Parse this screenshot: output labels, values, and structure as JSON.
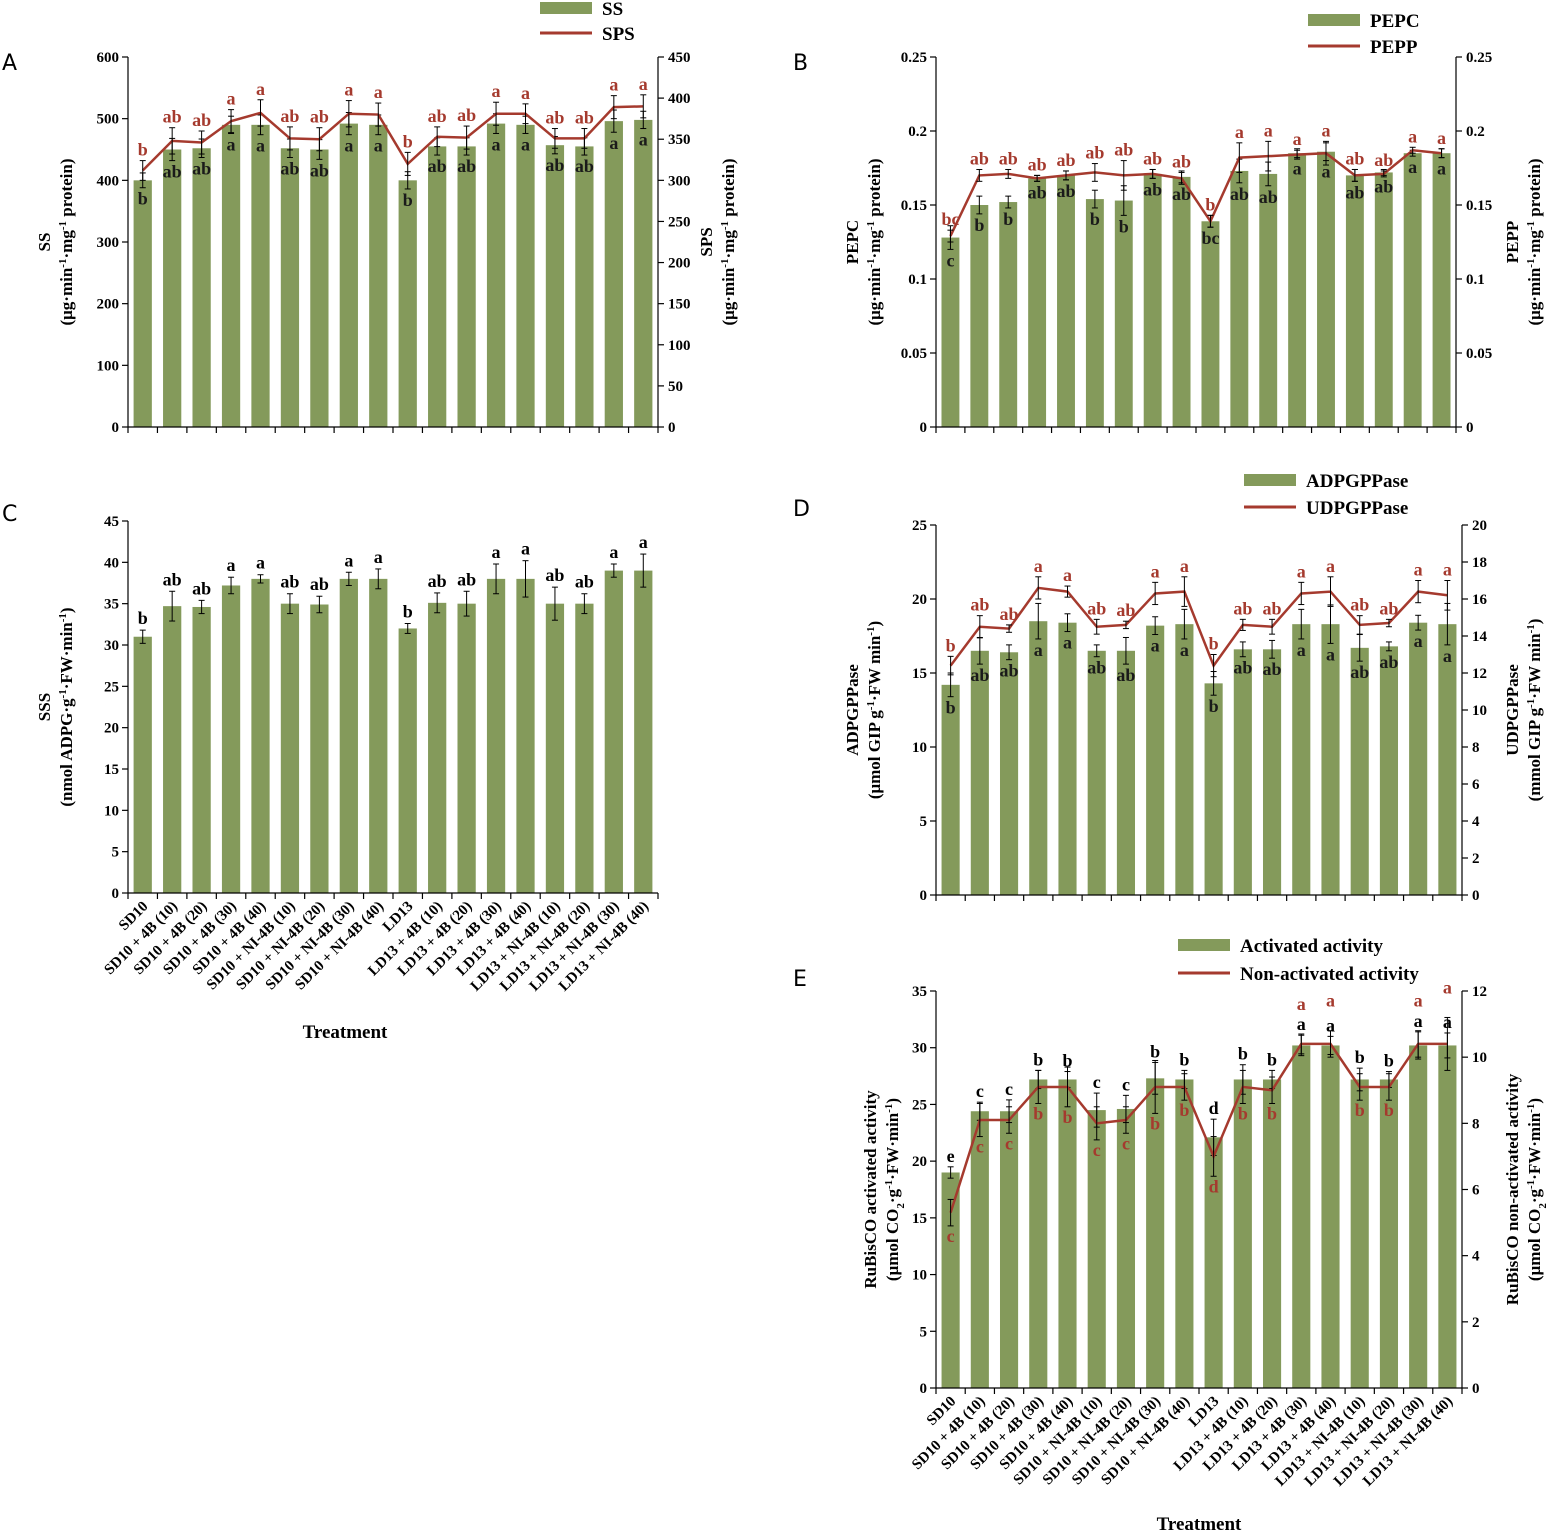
{
  "categories": [
    "SD10",
    "SD10 + 4B (10)",
    "SD10 + 4B (20)",
    "SD10 + 4B (30)",
    "SD10 + 4B (40)",
    "SD10 + NI-4B (10)",
    "SD10 + NI-4B (20)",
    "SD10 + NI-4B (30)",
    "SD10 + NI-4B (40)",
    "LD13",
    "LD13 + 4B (10)",
    "LD13 + 4B (20)",
    "LD13 + 4B (30)",
    "LD13 + 4B (40)",
    "LD13 + NI-4B (10)",
    "LD13 + NI-4B (20)",
    "LD13 + NI-4B (30)",
    "LD13 + NI-4B (40)"
  ],
  "colors": {
    "bar": "#849a5b",
    "line": "#a53a2e",
    "line_label": "#a53a2e",
    "bar_label": "#1a1a1a"
  },
  "chart_data": [
    {
      "id": "A",
      "type": "bar",
      "panel_letter": "A",
      "legend": [
        "SS",
        "SPS"
      ],
      "legend_position": "top-center",
      "ylabel_left": [
        "SS",
        "(μg·min",
        "-1",
        "·mg",
        "-1",
        " protein)"
      ],
      "ylabel_right": [
        "SPS",
        "(μg·min",
        "-1",
        "·mg",
        "-1",
        " protein)"
      ],
      "ylim_left": [
        0,
        600
      ],
      "yticks_left": [
        0,
        100,
        200,
        300,
        400,
        500,
        600
      ],
      "ylim_right": [
        0,
        450
      ],
      "yticks_right": [
        0,
        50,
        100,
        150,
        200,
        250,
        300,
        350,
        400,
        450
      ],
      "show_xlabels": false,
      "bars": {
        "name": "SS",
        "values": [
          400,
          450,
          452,
          490,
          490,
          452,
          450,
          492,
          490,
          400,
          455,
          455,
          492,
          490,
          457,
          455,
          496,
          498
        ],
        "errors": [
          12,
          18,
          15,
          14,
          16,
          15,
          16,
          18,
          16,
          14,
          14,
          14,
          16,
          14,
          14,
          14,
          18,
          14
        ],
        "labels": [
          "b",
          "ab",
          "ab",
          "a",
          "a",
          "ab",
          "ab",
          "a",
          "a",
          "b",
          "ab",
          "ab",
          "a",
          "a",
          "ab",
          "ab",
          "a",
          "a"
        ]
      },
      "line": {
        "name": "SPS",
        "values": [
          312,
          348,
          346,
          372,
          382,
          351,
          350,
          381,
          380,
          320,
          353,
          352,
          381,
          381,
          351,
          351,
          389,
          390
        ],
        "errors": [
          12,
          16,
          14,
          14,
          16,
          14,
          14,
          16,
          14,
          14,
          12,
          14,
          14,
          12,
          12,
          12,
          14,
          14
        ],
        "labels": [
          "b",
          "ab",
          "ab",
          "a",
          "a",
          "ab",
          "ab",
          "a",
          "a",
          "b",
          "ab",
          "ab",
          "a",
          "a",
          "ab",
          "ab",
          "a",
          "a"
        ]
      }
    },
    {
      "id": "B",
      "type": "bar",
      "panel_letter": "B",
      "legend": [
        "PEPC",
        "PEPP"
      ],
      "legend_position": "top-right",
      "ylabel_left": [
        "PEPC",
        "(μg·min",
        "-1",
        "·mg",
        "-1",
        " protein)"
      ],
      "ylabel_right": [
        "PEPP",
        "(μg·min",
        "-1",
        "·mg",
        "-1",
        " protein)"
      ],
      "ylim_left": [
        0,
        0.25
      ],
      "yticks_left": [
        "0",
        "0.05",
        "0.1",
        "0.15",
        "0.2",
        "0.25"
      ],
      "ylim_right": [
        0,
        0.25
      ],
      "yticks_right": [
        "0",
        "0.05",
        "0.1",
        "0.15",
        "0.2",
        "0.25"
      ],
      "show_xlabels": false,
      "bars": {
        "name": "PEPC",
        "values": [
          0.128,
          0.15,
          0.152,
          0.168,
          0.17,
          0.154,
          0.153,
          0.171,
          0.169,
          0.139,
          0.173,
          0.171,
          0.185,
          0.186,
          0.17,
          0.172,
          0.185,
          0.185
        ],
        "errors": [
          0.008,
          0.006,
          0.004,
          0.002,
          0.003,
          0.006,
          0.01,
          0.003,
          0.004,
          0.004,
          0.008,
          0.008,
          0.003,
          0.006,
          0.004,
          0.002,
          0.002,
          0.003
        ],
        "labels": [
          "c",
          "b",
          "b",
          "ab",
          "ab",
          "b",
          "b",
          "ab",
          "ab",
          "bc",
          "ab",
          "ab",
          "a",
          "a",
          "ab",
          "ab",
          "a",
          "a"
        ]
      },
      "line": {
        "name": "PEPP",
        "values": [
          0.129,
          0.17,
          0.171,
          0.168,
          0.17,
          0.172,
          0.17,
          0.171,
          0.168,
          0.139,
          0.182,
          0.183,
          0.184,
          0.185,
          0.17,
          0.171,
          0.187,
          0.185
        ],
        "errors": [
          0.004,
          0.004,
          0.003,
          0.002,
          0.003,
          0.006,
          0.01,
          0.003,
          0.004,
          0.004,
          0.01,
          0.01,
          0.003,
          0.008,
          0.004,
          0.002,
          0.002,
          0.003
        ],
        "labels": [
          "bc",
          "ab",
          "ab",
          "ab",
          "ab",
          "ab",
          "ab",
          "ab",
          "ab",
          "b",
          "a",
          "a",
          "a",
          "a",
          "ab",
          "ab",
          "a",
          "a"
        ]
      }
    },
    {
      "id": "C",
      "type": "bar",
      "panel_letter": "C",
      "legend": [],
      "ylabel_left": [
        "SSS",
        "(nmol ADPG·g",
        "-1",
        "·FW·min",
        "-1",
        ")"
      ],
      "ylabel_right": [],
      "ylim_left": [
        0,
        45
      ],
      "yticks_left": [
        0,
        5,
        10,
        15,
        20,
        25,
        30,
        35,
        40,
        45
      ],
      "show_xlabels": true,
      "xlabel": "Treatment",
      "bars": {
        "name": "SSS",
        "values": [
          31.0,
          34.7,
          34.6,
          37.2,
          38.0,
          35.0,
          34.9,
          38.0,
          38.0,
          32.0,
          35.1,
          35.0,
          38.0,
          38.0,
          35.0,
          35.0,
          39.0,
          39.0
        ],
        "errors": [
          0.8,
          1.8,
          0.8,
          1.0,
          0.5,
          1.2,
          1.0,
          0.8,
          1.2,
          0.6,
          1.2,
          1.5,
          1.8,
          2.2,
          2.0,
          1.2,
          0.8,
          2.0
        ],
        "labels": [
          "b",
          "ab",
          "ab",
          "a",
          "a",
          "ab",
          "ab",
          "a",
          "a",
          "b",
          "ab",
          "ab",
          "a",
          "a",
          "ab",
          "ab",
          "a",
          "a"
        ]
      }
    },
    {
      "id": "D",
      "type": "bar",
      "panel_letter": "D",
      "legend": [
        "ADPGPPase",
        "UDPGPPase"
      ],
      "legend_position": "top-right",
      "ylabel_left": [
        "ADPGPPase",
        "(μmol GIP g",
        "-1",
        "·FW min",
        "-1",
        ")"
      ],
      "ylabel_right": [
        "UDPGPPase",
        "(mmol GIP g",
        "-1",
        "·FW min",
        "-1",
        ")"
      ],
      "ylim_left": [
        0,
        25
      ],
      "yticks_left": [
        0,
        5,
        10,
        15,
        20,
        25
      ],
      "ylim_right": [
        0,
        20
      ],
      "yticks_right": [
        0,
        2,
        4,
        6,
        8,
        10,
        12,
        14,
        16,
        18,
        20
      ],
      "show_xlabels": false,
      "bars": {
        "name": "ADPGPPase",
        "values": [
          14.2,
          16.5,
          16.4,
          18.5,
          18.4,
          16.5,
          16.5,
          18.2,
          18.3,
          14.3,
          16.6,
          16.6,
          18.3,
          18.3,
          16.7,
          16.8,
          18.4,
          18.3
        ],
        "errors": [
          0.8,
          0.9,
          0.5,
          1.2,
          0.6,
          0.4,
          0.9,
          0.6,
          1.0,
          0.8,
          0.5,
          0.6,
          1.0,
          1.3,
          0.9,
          0.3,
          0.5,
          1.4
        ],
        "labels": [
          "b",
          "ab",
          "ab",
          "a",
          "a",
          "ab",
          "ab",
          "a",
          "a",
          "b",
          "ab",
          "ab",
          "a",
          "a",
          "ab",
          "ab",
          "a",
          "a"
        ]
      },
      "line": {
        "name": "UDPGPPase",
        "values": [
          12.4,
          14.5,
          14.4,
          16.6,
          16.4,
          14.5,
          14.6,
          16.3,
          16.4,
          12.4,
          14.6,
          14.5,
          16.3,
          16.4,
          14.6,
          14.7,
          16.4,
          16.2
        ],
        "errors": [
          0.5,
          0.6,
          0.2,
          0.6,
          0.3,
          0.4,
          0.2,
          0.6,
          0.8,
          0.6,
          0.3,
          0.4,
          0.6,
          0.8,
          0.5,
          0.2,
          0.6,
          0.8
        ],
        "labels": [
          "b",
          "ab",
          "ab",
          "a",
          "a",
          "ab",
          "ab",
          "a",
          "a",
          "b",
          "ab",
          "ab",
          "a",
          "a",
          "ab",
          "ab",
          "a",
          "a"
        ]
      }
    },
    {
      "id": "E",
      "type": "bar",
      "panel_letter": "E",
      "legend": [
        "Activated activity",
        "Non-activated activity"
      ],
      "legend_position": "top-right",
      "ylabel_left": [
        "RuBisCO activated activity",
        "(μmol CO",
        "2",
        "·g",
        "-1",
        "·FW·min",
        "-1",
        ")"
      ],
      "ylabel_right": [
        "RuBisCO non-activated activity",
        "(μmol CO",
        "2",
        "·g",
        "-1",
        "·FW·min",
        "-1",
        ")"
      ],
      "ylim_left": [
        0,
        35
      ],
      "yticks_left": [
        0,
        5,
        10,
        15,
        20,
        25,
        30,
        35
      ],
      "ylim_right": [
        0,
        12
      ],
      "yticks_right": [
        0,
        2,
        4,
        6,
        8,
        10,
        12
      ],
      "show_xlabels": true,
      "xlabel": "Treatment",
      "bars": {
        "name": "Activated activity",
        "values": [
          19.0,
          24.4,
          24.4,
          27.2,
          27.2,
          24.5,
          24.6,
          27.3,
          27.2,
          22.1,
          27.2,
          27.2,
          30.2,
          30.2,
          27.2,
          27.2,
          30.2,
          30.2
        ],
        "errors": [
          0.5,
          0.8,
          1.0,
          0.8,
          0.7,
          1.5,
          1.2,
          1.4,
          0.8,
          1.6,
          1.3,
          0.8,
          0.9,
          0.8,
          1.0,
          0.7,
          1.2,
          1.1
        ],
        "labels": [
          "e",
          "c",
          "c",
          "b",
          "b",
          "c",
          "c",
          "b",
          "b",
          "d",
          "b",
          "b",
          "a",
          "a",
          "b",
          "b",
          "a",
          "a"
        ]
      },
      "line": {
        "name": "Non-activated activity",
        "values": [
          5.3,
          8.1,
          8.1,
          9.1,
          9.1,
          8.0,
          8.1,
          9.1,
          9.1,
          7.0,
          9.1,
          9.0,
          10.4,
          10.4,
          9.1,
          9.1,
          10.4,
          10.4
        ],
        "errors": [
          0.4,
          0.5,
          0.4,
          0.5,
          0.6,
          0.5,
          0.4,
          0.8,
          0.4,
          0.6,
          0.5,
          0.4,
          0.3,
          0.4,
          0.4,
          0.4,
          0.4,
          0.8
        ],
        "labels": [
          "c",
          "c",
          "c",
          "b",
          "b",
          "c",
          "c",
          "b",
          "b",
          "d",
          "b",
          "b",
          "a",
          "a",
          "b",
          "b",
          "a",
          "a"
        ]
      }
    }
  ]
}
